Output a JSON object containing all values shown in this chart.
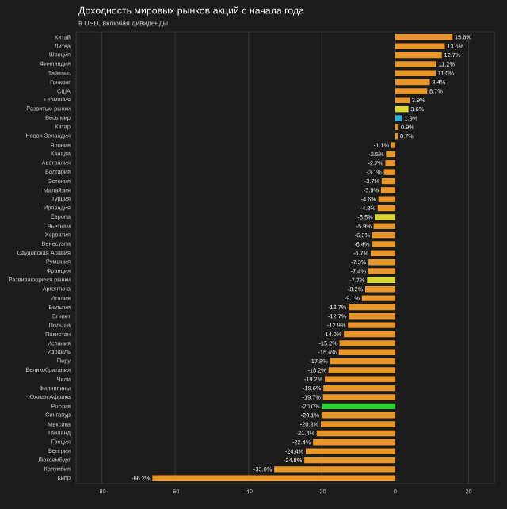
{
  "chart_data": {
    "type": "bar",
    "orientation": "horizontal",
    "title": "Доходность мировых рынков акций с начала года",
    "subtitle": "в USD, включая дивиденды",
    "categories": [
      "Китай",
      "Литва",
      "Швеция",
      "Финляндия",
      "Тайвань",
      "Гонконг",
      "США",
      "Германия",
      "Развитые рынки",
      "Весь мир",
      "Катар",
      "Новая Зеландия",
      "Япония",
      "Канада",
      "Австралия",
      "Болгария",
      "Эстония",
      "Малайзия",
      "Турция",
      "Ирландия",
      "Европа",
      "Вьетнам",
      "Хорватия",
      "Венесуэла",
      "Саудовская Аравия",
      "Румыния",
      "Франция",
      "Развивающиеся рынки",
      "Аргентина",
      "Италия",
      "Бельгия",
      "Египет",
      "Польша",
      "Пакистан",
      "Испания",
      "Израиль",
      "Перу",
      "Великобритания",
      "Чили",
      "Филиппины",
      "Южная Африка",
      "Россия",
      "Сингапур",
      "Мексика",
      "Таиланд",
      "Греция",
      "Венгрия",
      "Люксембург",
      "Колумбия",
      "Кипр"
    ],
    "values": [
      15.6,
      13.5,
      12.7,
      11.2,
      11.0,
      9.4,
      8.7,
      3.9,
      3.6,
      1.9,
      0.9,
      0.7,
      -1.1,
      -2.5,
      -2.7,
      -3.1,
      -3.7,
      -3.9,
      -4.6,
      -4.8,
      -5.5,
      -5.9,
      -6.3,
      -6.4,
      -6.7,
      -7.3,
      -7.4,
      -7.7,
      -8.2,
      -9.1,
      -12.7,
      -12.7,
      -12.9,
      -14.0,
      -15.2,
      -15.4,
      -17.8,
      -18.2,
      -19.2,
      -19.6,
      -19.7,
      -20.0,
      -20.1,
      -20.3,
      -21.4,
      -22.4,
      -24.4,
      -24.8,
      -33.0,
      -66.2
    ],
    "value_labels": [
      "15.6%",
      "13.5%",
      "12.7%",
      "11.2%",
      "11.0%",
      "9.4%",
      "8.7%",
      "3.9%",
      "3.6%",
      "1.9%",
      "0.9%",
      "0.7%",
      "-1.1%",
      "-2.5%",
      "-2.7%",
      "-3.1%",
      "-3.7%",
      "-3.9%",
      "-4.6%",
      "-4.8%",
      "-5.5%",
      "-5.9%",
      "-6.3%",
      "-6.4%",
      "-6.7%",
      "-7.3%",
      "-7.4%",
      "-7.7%",
      "-8.2%",
      "-9.1%",
      "-12.7%",
      "-12.7%",
      "-12.9%",
      "-14.0%",
      "-15.2%",
      "-15.4%",
      "-17.8%",
      "-18.2%",
      "-19.2%",
      "-19.6%",
      "-19.7%",
      "-20.0%",
      "-20.1%",
      "-20.3%",
      "-21.4%",
      "-22.4%",
      "-24.4%",
      "-24.8%",
      "-33.0%",
      "-66.2%"
    ],
    "colors": [
      "#e8962a",
      "#e8962a",
      "#e8962a",
      "#e8962a",
      "#e8962a",
      "#e8962a",
      "#e8962a",
      "#e8962a",
      "#d8d830",
      "#30b0d8",
      "#e8962a",
      "#e8962a",
      "#e8962a",
      "#e8962a",
      "#e8962a",
      "#e8962a",
      "#e8962a",
      "#e8962a",
      "#e8962a",
      "#e8962a",
      "#d8d830",
      "#e8962a",
      "#e8962a",
      "#e8962a",
      "#e8962a",
      "#e8962a",
      "#e8962a",
      "#d8d830",
      "#e8962a",
      "#e8962a",
      "#e8962a",
      "#e8962a",
      "#e8962a",
      "#e8962a",
      "#e8962a",
      "#e8962a",
      "#e8962a",
      "#e8962a",
      "#e8962a",
      "#e8962a",
      "#e8962a",
      "#30d030",
      "#e8962a",
      "#e8962a",
      "#e8962a",
      "#e8962a",
      "#e8962a",
      "#e8962a",
      "#e8962a",
      "#e8962a"
    ],
    "xlim": [
      -87,
      27
    ],
    "xticks": [
      -80,
      -60,
      -40,
      -20,
      0,
      20
    ],
    "grid": "x"
  }
}
